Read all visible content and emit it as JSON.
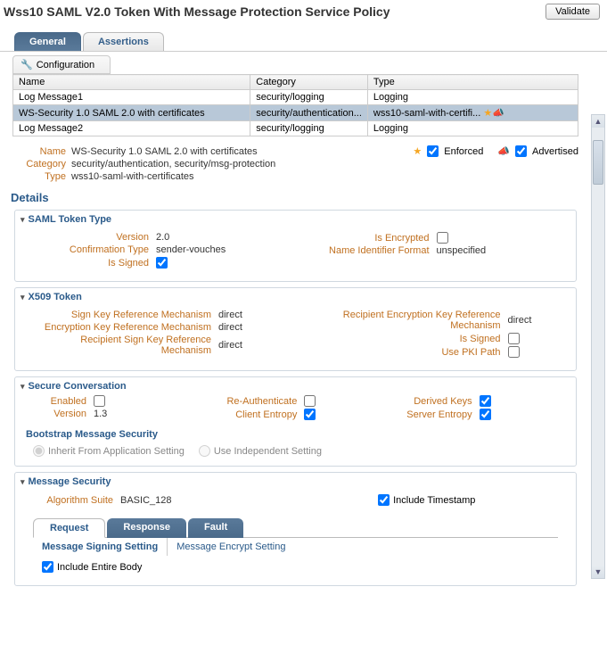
{
  "header": {
    "title": "Wss10 SAML V2.0 Token With Message Protection Service Policy",
    "validate": "Validate"
  },
  "tabs": {
    "general": "General",
    "assertions": "Assertions"
  },
  "config": {
    "label": "Configuration"
  },
  "table": {
    "cols": [
      "Name",
      "Category",
      "Type"
    ],
    "rows": [
      {
        "name": "Log Message1",
        "category": "security/logging",
        "type": "Logging",
        "selected": false,
        "icons": false
      },
      {
        "name": "WS-Security 1.0 SAML 2.0 with certificates",
        "category": "security/authentication...",
        "type": "wss10-saml-with-certifi...",
        "selected": true,
        "icons": true
      },
      {
        "name": "Log Message2",
        "category": "security/logging",
        "type": "Logging",
        "selected": false,
        "icons": false
      }
    ]
  },
  "meta": {
    "name_lbl": "Name",
    "name_val": "WS-Security 1.0 SAML 2.0 with certificates",
    "category_lbl": "Category",
    "category_val": "security/authentication, security/msg-protection",
    "type_lbl": "Type",
    "type_val": "wss10-saml-with-certificates",
    "enforced": "Enforced",
    "advertised": "Advertised"
  },
  "details_title": "Details",
  "saml": {
    "title": "SAML Token Type",
    "version_lbl": "Version",
    "version": "2.0",
    "conf_lbl": "Confirmation Type",
    "conf": "sender-vouches",
    "signed_lbl": "Is Signed",
    "signed": true,
    "enc_lbl": "Is Encrypted",
    "enc": false,
    "nif_lbl": "Name Identifier Format",
    "nif": "unspecified"
  },
  "x509": {
    "title": "X509 Token",
    "sign_key_lbl": "Sign Key Reference Mechanism",
    "sign_key": "direct",
    "enc_key_lbl": "Encryption Key Reference Mechanism",
    "enc_key": "direct",
    "rec_sign_lbl": "Recipient Sign Key Reference Mechanism",
    "rec_sign": "direct",
    "rec_enc_lbl": "Recipient Encryption Key Reference Mechanism",
    "rec_enc": "direct",
    "signed_lbl": "Is Signed",
    "signed": false,
    "pki_lbl": "Use PKI Path",
    "pki": false
  },
  "sc": {
    "title": "Secure Conversation",
    "enabled_lbl": "Enabled",
    "enabled": false,
    "version_lbl": "Version",
    "version": "1.3",
    "reauth_lbl": "Re-Authenticate",
    "reauth": false,
    "client_ent_lbl": "Client Entropy",
    "client_ent": true,
    "derived_lbl": "Derived Keys",
    "derived": true,
    "server_ent_lbl": "Server Entropy",
    "server_ent": true,
    "bootstrap": "Bootstrap Message Security",
    "radio_inherit": "Inherit From Application Setting",
    "radio_independent": "Use Independent Setting"
  },
  "ms": {
    "title": "Message Security",
    "alg_lbl": "Algorithm Suite",
    "alg": "BASIC_128",
    "ts_lbl": "Include Timestamp",
    "ts": true,
    "tabs": {
      "request": "Request",
      "response": "Response",
      "fault": "Fault"
    },
    "subtabs": {
      "sign": "Message Signing Setting",
      "encrypt": "Message Encrypt Setting"
    },
    "include_body": "Include Entire Body",
    "include_body_val": true
  }
}
